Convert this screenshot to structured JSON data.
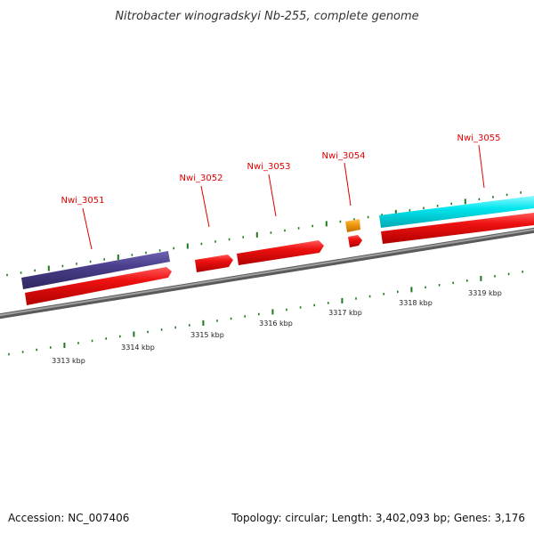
{
  "title": "Nitrobacter winogradskyi Nb-255, complete genome",
  "footer": {
    "accession": "Accession: NC_007406",
    "summary": "Topology: circular; Length: 3,402,093 bp; Genes: 3,176"
  },
  "colors": {
    "backbone": "#8a8a8a",
    "gene_red": "#e8101a",
    "gene_purple": "#4a3f8c",
    "gene_cyan": "#00e5ee",
    "gene_orange": "#f39a12",
    "tick_green": "#1f7a1f",
    "label_red": "#e00000"
  },
  "gene_labels": [
    {
      "name": "Nwi_3051"
    },
    {
      "name": "Nwi_3052"
    },
    {
      "name": "Nwi_3053"
    },
    {
      "name": "Nwi_3054"
    },
    {
      "name": "Nwi_3055"
    }
  ],
  "kbp_labels": [
    "3313 kbp",
    "3314 kbp",
    "3315 kbp",
    "3316 kbp",
    "3317 kbp",
    "3318 kbp",
    "3319 kbp"
  ]
}
